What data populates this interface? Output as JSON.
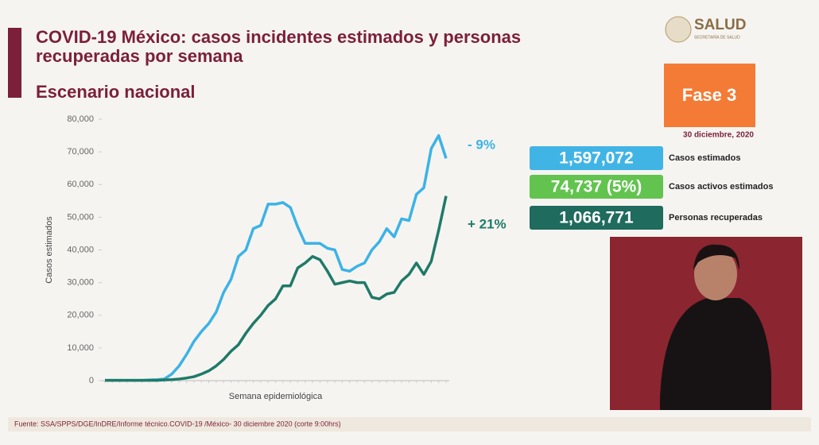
{
  "header": {
    "title_line1": "COVID-19 México: casos incidentes estimados y personas",
    "title_line2": "recuperadas por semana",
    "subtitle": "Escenario nacional",
    "brand": "SALUD",
    "brand_sub": "SECRETARÍA DE SALUD"
  },
  "phase": "Fase 3",
  "date": "30 diciembre, 2020",
  "stats": [
    {
      "value": "1,597,072",
      "label": "Casos estimados",
      "color": "#41b4e6"
    },
    {
      "value": "74,737 (5%)",
      "label": "Casos activos estimados",
      "color": "#62c44f"
    },
    {
      "value": "1,066,771",
      "label": "Personas recuperadas",
      "color": "#1f6b5e"
    }
  ],
  "footer": "Fuente: SSA/SPPS/DGE/InDRE/Informe técnico.COVID-19 /México- 30 diciembre 2020 (corte 9:00hrs)",
  "chart_data": {
    "type": "line",
    "xlabel": "Semana epidemiológica",
    "ylabel": "Casos estimados",
    "categories": [
      null,
      null,
      null,
      null,
      null,
      null,
      null,
      null,
      null,
      null,
      null,
      null,
      null,
      null,
      null,
      null,
      null,
      null,
      null,
      null,
      null,
      null,
      null,
      null,
      null,
      null,
      null,
      null,
      null,
      null,
      null,
      null,
      null,
      null,
      null,
      null,
      null,
      null,
      null,
      null,
      null,
      null,
      null,
      null,
      null,
      null,
      null
    ],
    "series": [
      {
        "name": "Casos estimados",
        "color": "#3cb3e6",
        "values": [
          100,
          100,
          100,
          100,
          100,
          100,
          200,
          300,
          500,
          2000,
          4500,
          8000,
          12000,
          15000,
          17500,
          21000,
          27000,
          31000,
          38000,
          40000,
          46500,
          47500,
          54000,
          54000,
          54500,
          53000,
          47000,
          42000,
          42000,
          42000,
          40500,
          40000,
          34000,
          33500,
          35000,
          36000,
          40000,
          42500,
          46500,
          44000,
          49500,
          49000,
          57000,
          59000,
          71000,
          75000,
          68000
        ]
      },
      {
        "name": "Personas recuperadas",
        "color": "#1f7a68",
        "values": [
          100,
          100,
          100,
          100,
          100,
          100,
          100,
          100,
          200,
          300,
          500,
          800,
          1200,
          2000,
          3000,
          4500,
          6500,
          9000,
          11000,
          14500,
          17500,
          20000,
          23000,
          25000,
          29000,
          29000,
          34500,
          36000,
          38000,
          37000,
          33500,
          29500,
          30000,
          30500,
          30000,
          30000,
          25500,
          25000,
          26500,
          27000,
          30500,
          32500,
          36000,
          32500,
          36500,
          46000,
          56500
        ]
      }
    ],
    "annotations": [
      "- 9%",
      "+ 21%"
    ],
    "ylim": [
      0,
      80000
    ],
    "yticks": [
      0,
      {
        "value": 10000,
        "label": "10,000"
      },
      {
        "value": 20000,
        "label": "20,000"
      },
      {
        "value": 30000,
        "label": "30,000"
      },
      {
        "value": 40000,
        "label": "40,000"
      },
      {
        "value": 50000,
        "label": "50,000"
      },
      {
        "value": 60000,
        "label": "60,000"
      },
      {
        "value": 70000,
        "label": "70,000"
      },
      {
        "value": 80000,
        "label": "80,000"
      }
    ],
    "grid": false
  }
}
